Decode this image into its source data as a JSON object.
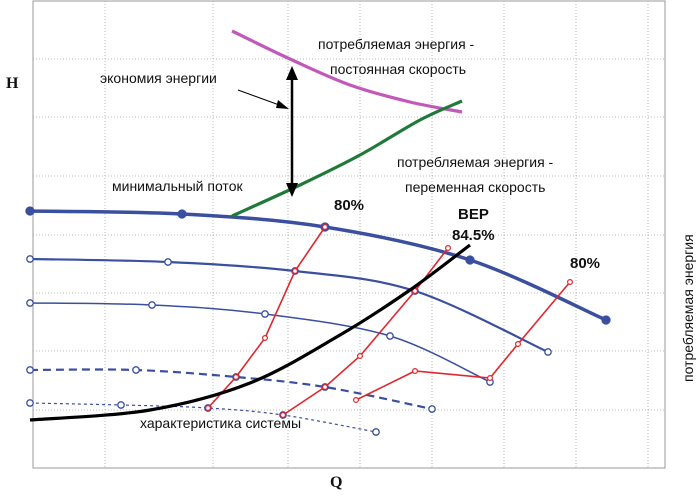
{
  "chart_data": {
    "type": "line",
    "axes": {
      "x_label": "Q",
      "y_label": "H",
      "right_label": "потребляемая энергия",
      "grid": true,
      "x_ticks_labeled": false,
      "y_ticks_labeled": false
    },
    "annotations": {
      "energy_savings": "экономия энергии",
      "min_flow": "минимальный поток",
      "power_constant_line1": "потребляемая энергия -",
      "power_constant_line2": "постоянная скорость",
      "power_variable_line1": "потребляемая энергия -",
      "power_variable_line2": "переменная скорость",
      "efficiency_left": "80%",
      "bep_label": "BEP",
      "bep_value": "84.5%",
      "efficiency_right": "80%",
      "system_curve": "характеристика системы"
    },
    "colors": {
      "pump_curves": "#3a4fa0",
      "efficiency_lines": "#e0262e",
      "system_curve": "#000000",
      "power_constant": "#c258b7",
      "power_variable": "#1f7a3a",
      "grid": "#aaaaaa"
    },
    "pump_curves": [
      {
        "id": "n100",
        "style": "solid",
        "width": 3.5,
        "points": [
          [
            30,
            211
          ],
          [
            182,
            214
          ],
          [
            325,
            227
          ],
          [
            470,
            260
          ],
          [
            606,
            320
          ]
        ]
      },
      {
        "id": "n90",
        "style": "solid",
        "width": 2.2,
        "points": [
          [
            30,
            259
          ],
          [
            168,
            262
          ],
          [
            295,
            271
          ],
          [
            415,
            291
          ],
          [
            548,
            352
          ]
        ]
      },
      {
        "id": "n80",
        "style": "solid",
        "width": 1.5,
        "points": [
          [
            30,
            303
          ],
          [
            152,
            305
          ],
          [
            265,
            314
          ],
          [
            390,
            336
          ],
          [
            490,
            382
          ]
        ]
      },
      {
        "id": "n70",
        "style": "dashed",
        "width": 2.2,
        "points": [
          [
            30,
            370
          ],
          [
            136,
            370
          ],
          [
            236,
            377
          ],
          [
            325,
            387
          ],
          [
            432,
            409
          ]
        ]
      },
      {
        "id": "n60",
        "style": "dashed",
        "width": 1.2,
        "points": [
          [
            30,
            403
          ],
          [
            121,
            405
          ],
          [
            208,
            408
          ],
          [
            283,
            415
          ],
          [
            376,
            432
          ]
        ]
      }
    ],
    "efficiency_lines": [
      {
        "id": "eff-left",
        "points": [
          [
            208,
            408
          ],
          [
            236,
            377
          ],
          [
            265,
            338
          ],
          [
            295,
            271
          ],
          [
            325,
            227
          ]
        ]
      },
      {
        "id": "eff-mid",
        "points": [
          [
            283,
            415
          ],
          [
            325,
            387
          ],
          [
            360,
            356
          ],
          [
            415,
            291
          ],
          [
            448,
            248
          ]
        ]
      },
      {
        "id": "eff-right",
        "points": [
          [
            356,
            400
          ],
          [
            415,
            371
          ],
          [
            490,
            378
          ],
          [
            518,
            344
          ],
          [
            570,
            282
          ]
        ]
      }
    ],
    "system_curve": {
      "points": [
        [
          30,
          420
        ],
        [
          150,
          410
        ],
        [
          250,
          383
        ],
        [
          340,
          335
        ],
        [
          410,
          290
        ],
        [
          470,
          245
        ]
      ]
    },
    "power_constant": {
      "points": [
        [
          232,
          31
        ],
        [
          290,
          59
        ],
        [
          350,
          85
        ],
        [
          410,
          102
        ],
        [
          462,
          112
        ]
      ]
    },
    "power_variable": {
      "points": [
        [
          232,
          216
        ],
        [
          300,
          185
        ],
        [
          360,
          155
        ],
        [
          420,
          120
        ],
        [
          462,
          101
        ]
      ]
    }
  }
}
